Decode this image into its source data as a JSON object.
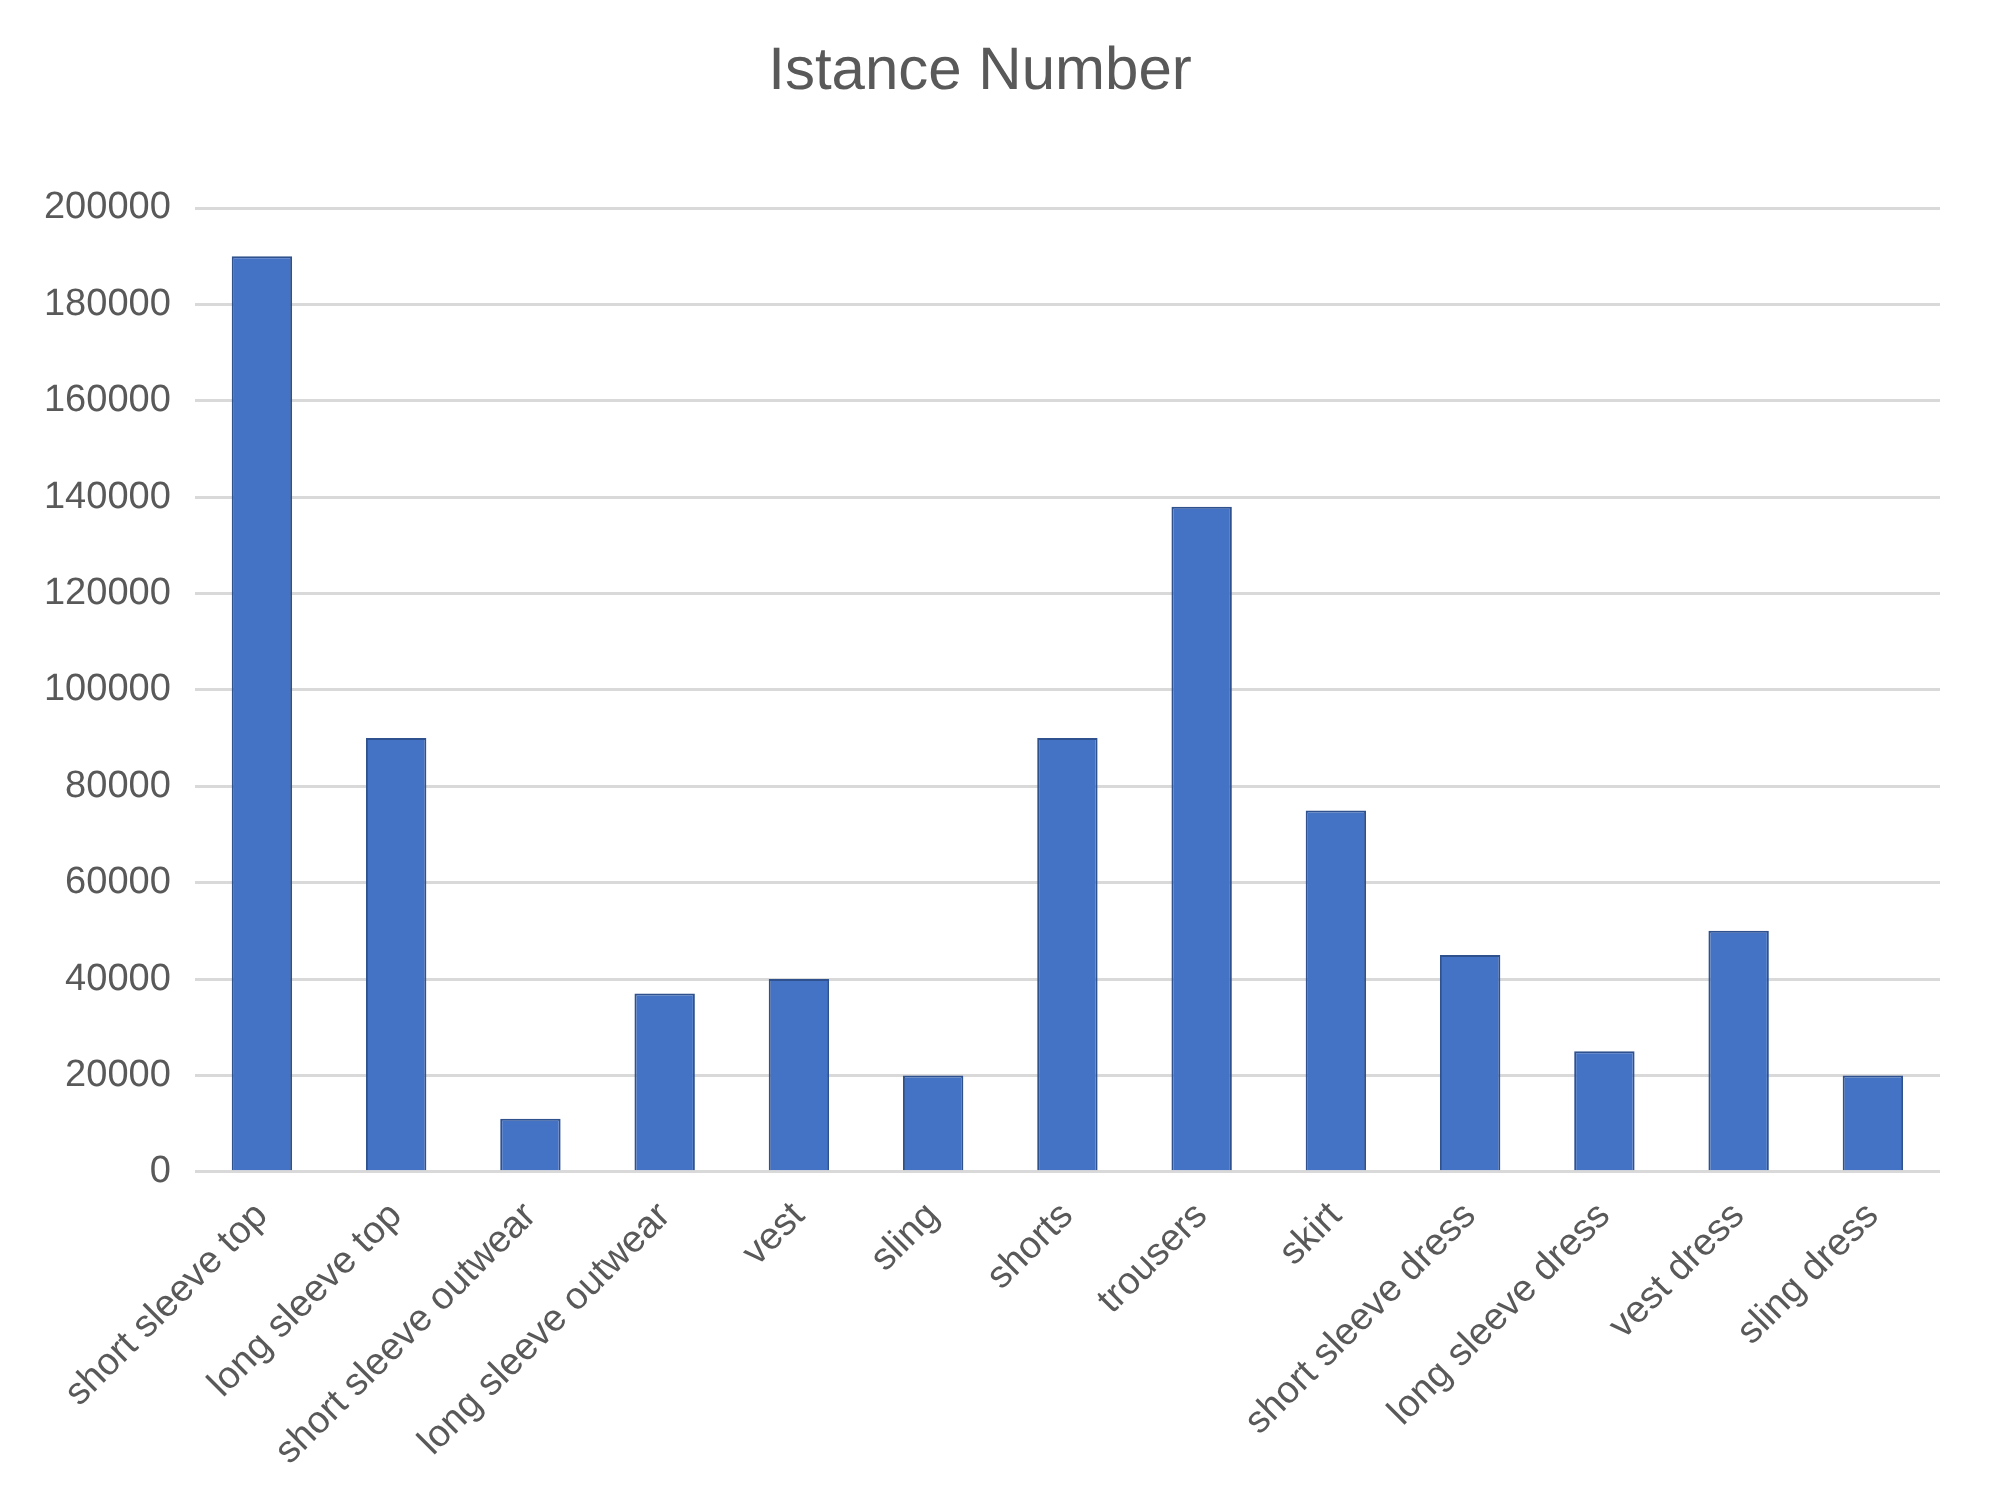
{
  "chart_data": {
    "type": "bar",
    "title": "Istance Number",
    "categories": [
      "short sleeve top",
      "long sleeve top",
      "short sleeve outwear",
      "long sleeve outwear",
      "vest",
      "sling",
      "shorts",
      "trousers",
      "skirt",
      "short sleeve dress",
      "long sleeve dress",
      "vest dress",
      "sling dress"
    ],
    "values": [
      190000,
      90000,
      11000,
      37000,
      40000,
      20000,
      90000,
      138000,
      75000,
      45000,
      25000,
      50000,
      20000
    ],
    "color": "#4472c4",
    "ylim": [
      0,
      200000
    ],
    "yticks": [
      0,
      20000,
      40000,
      60000,
      80000,
      100000,
      120000,
      140000,
      160000,
      180000,
      200000
    ],
    "grid": "y",
    "legend": false
  }
}
